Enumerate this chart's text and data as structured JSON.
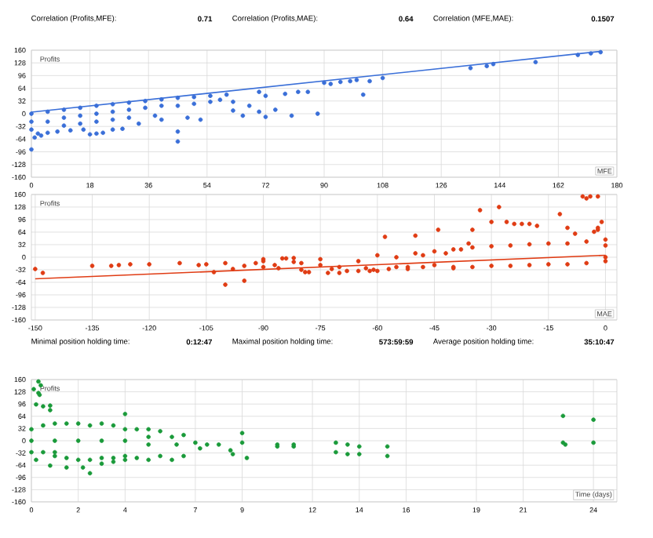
{
  "chart_data": [
    {
      "type": "scatter",
      "xlabel": "MFE",
      "ylabel": "Profits",
      "xlim": [
        0,
        180
      ],
      "ylim": [
        -160,
        160
      ],
      "xticks": [
        0,
        18,
        36,
        54,
        72,
        90,
        108,
        126,
        144,
        162,
        180
      ],
      "yticks": [
        -160,
        -128,
        -96,
        -64,
        -32,
        0,
        32,
        64,
        96,
        128,
        160
      ],
      "grid": true,
      "annotations": [
        "Correlation (Profits,MFE):",
        "0.71",
        "Correlation (Profits,MAE):",
        "0.64",
        "Correlation (MFE,MAE):",
        "0.1507"
      ],
      "series": [
        {
          "color": "#3a6fd8",
          "x": [
            0,
            1,
            2,
            3,
            5,
            8,
            12,
            16,
            18,
            20,
            22,
            25,
            28,
            33,
            40,
            45,
            45,
            48,
            52,
            0,
            0,
            0,
            5,
            5,
            10,
            10,
            10,
            15,
            15,
            15,
            20,
            20,
            20,
            25,
            25,
            25,
            30,
            30,
            30,
            35,
            35,
            38,
            40,
            40,
            45,
            45,
            50,
            50,
            55,
            55,
            58,
            60,
            62,
            62,
            65,
            67,
            70,
            70,
            72,
            72,
            75,
            78,
            80,
            82,
            85,
            88,
            90,
            92,
            95,
            98,
            100,
            102,
            104,
            108,
            135,
            140,
            142,
            155,
            168,
            172,
            175
          ],
          "values": [
            -90,
            -60,
            -50,
            -55,
            -48,
            -45,
            -42,
            -40,
            -52,
            -50,
            -48,
            -40,
            -38,
            -25,
            -15,
            -70,
            -45,
            -10,
            -15,
            0,
            -20,
            -40,
            5,
            -20,
            10,
            -10,
            -30,
            15,
            -5,
            -25,
            20,
            0,
            -20,
            24,
            5,
            -15,
            28,
            10,
            -10,
            32,
            15,
            -5,
            36,
            20,
            40,
            20,
            42,
            25,
            45,
            30,
            35,
            48,
            30,
            8,
            -5,
            20,
            55,
            5,
            45,
            -8,
            10,
            50,
            -5,
            55,
            55,
            0,
            78,
            75,
            80,
            82,
            85,
            48,
            82,
            90,
            115,
            120,
            125,
            130,
            148,
            152,
            155
          ]
        },
        {
          "type": "line",
          "color": "#3a6fd8",
          "x": [
            0,
            175
          ],
          "values": [
            4,
            157
          ]
        }
      ]
    },
    {
      "type": "scatter",
      "xlabel": "MAE",
      "ylabel": "Profits",
      "xlim": [
        -151,
        3
      ],
      "ylim": [
        -160,
        160
      ],
      "xticks": [
        -150,
        -135,
        -120,
        -105,
        -90,
        -75,
        -60,
        -45,
        -30,
        -15,
        0
      ],
      "yticks": [
        -160,
        -128,
        -96,
        -64,
        -32,
        0,
        32,
        64,
        96,
        128,
        160
      ],
      "grid": true,
      "series": [
        {
          "color": "#e03c14",
          "x": [
            -150,
            -148,
            -135,
            -130,
            -128,
            -125,
            -120,
            -112,
            -107,
            -105,
            -100,
            -90,
            -85,
            -84,
            -82,
            -103,
            -100,
            -98,
            -95,
            -90,
            -87,
            -86,
            -82,
            -80,
            -79,
            -78,
            -75,
            -73,
            -72,
            -70,
            -68,
            -65,
            -63,
            -61,
            -60,
            -58,
            -55,
            -52,
            -50,
            -48,
            -45,
            -44,
            -42,
            -40,
            -38,
            -36,
            -35,
            -33,
            -30,
            -28,
            -26,
            -24,
            -22,
            -20,
            -18,
            -12,
            -10,
            -8,
            -6,
            -5,
            -4,
            -2,
            -2,
            -1,
            -3,
            -2,
            0,
            0,
            0,
            0,
            -5,
            -5,
            -10,
            -10,
            -15,
            -15,
            -20,
            -20,
            -25,
            -25,
            -30,
            -30,
            -35,
            -35,
            -40,
            -40,
            -45,
            -50,
            -55,
            -48,
            -60,
            -65,
            -70,
            -75,
            -80,
            -90,
            -92,
            -95,
            -62,
            -57,
            -52
          ],
          "values": [
            -30,
            -40,
            -22,
            -22,
            -20,
            -18,
            -18,
            -15,
            -20,
            -18,
            -15,
            -10,
            -3,
            -3,
            -2,
            -38,
            -70,
            -30,
            -60,
            -5,
            -20,
            -28,
            -12,
            -32,
            -38,
            -38,
            -20,
            -40,
            -30,
            -40,
            -35,
            -10,
            -28,
            -32,
            5,
            52,
            -25,
            -25,
            55,
            -25,
            -20,
            70,
            10,
            -25,
            20,
            35,
            70,
            120,
            90,
            128,
            90,
            85,
            85,
            85,
            80,
            110,
            75,
            60,
            155,
            150,
            155,
            155,
            75,
            90,
            65,
            70,
            45,
            30,
            0,
            -10,
            40,
            -15,
            35,
            -18,
            35,
            -18,
            33,
            -20,
            30,
            -22,
            28,
            -22,
            25,
            -25,
            20,
            -28,
            15,
            10,
            0,
            5,
            -35,
            -35,
            -25,
            -5,
            -15,
            -25,
            -15,
            -22,
            -35,
            -30,
            -30
          ]
        },
        {
          "type": "line",
          "color": "#e03c14",
          "x": [
            -150,
            0
          ],
          "values": [
            -55,
            5
          ]
        }
      ]
    },
    {
      "type": "scatter",
      "xlabel": "Time (days)",
      "ylabel": "Profits",
      "xlim": [
        0,
        25
      ],
      "ylim": [
        -160,
        160
      ],
      "xticks": [
        0,
        2,
        4,
        7,
        9,
        12,
        14,
        16,
        19,
        21,
        24
      ],
      "yticks": [
        -160,
        -128,
        -96,
        -64,
        -32,
        0,
        32,
        64,
        96,
        128,
        160
      ],
      "grid": true,
      "annotations": [
        "Minimal position holding time:",
        "0:12:47",
        "Maximal position holding time:",
        "573:59:59",
        "Average position holding time:",
        "35:10:47"
      ],
      "series": [
        {
          "color": "#1a9a3a",
          "x": [
            0.3,
            0.4,
            0.3,
            0.35,
            0.1,
            0.2,
            0.5,
            0.8,
            0.8,
            0.2,
            0.8,
            1.0,
            1.5,
            2.2,
            2.5,
            3.0,
            3.5,
            4.0,
            4.5,
            5.0,
            5.5,
            6.0,
            6.5,
            6.2,
            5.0,
            4.0,
            4.5,
            5.0,
            5.5,
            6.0,
            6.5,
            7.0,
            7.2,
            7.5,
            8.0,
            8.5,
            8.6,
            9.0,
            9.2,
            9.0,
            10.5,
            10.5,
            11.2,
            11.2,
            13.0,
            13.0,
            13.5,
            13.5,
            14.0,
            14.0,
            15.2,
            15.2,
            22.7,
            22.7,
            22.8,
            24.0,
            24.0,
            0,
            0,
            0,
            0.5,
            0.5,
            1,
            1,
            1.5,
            1.5,
            2,
            2,
            2.5,
            2.5,
            3,
            3,
            3.5,
            3.5,
            4,
            4,
            1,
            2,
            3,
            4,
            5
          ],
          "values": [
            155,
            145,
            125,
            120,
            135,
            95,
            90,
            92,
            80,
            -50,
            -65,
            -30,
            -70,
            -70,
            -85,
            -60,
            -55,
            -50,
            -45,
            -50,
            -40,
            -50,
            -40,
            -10,
            10,
            70,
            30,
            30,
            25,
            10,
            15,
            -5,
            -20,
            -10,
            -10,
            -25,
            -35,
            20,
            -45,
            -5,
            -10,
            -15,
            -15,
            -10,
            -5,
            -30,
            -10,
            -35,
            -15,
            -35,
            -15,
            -40,
            65,
            -5,
            -10,
            55,
            -5,
            0,
            30,
            -30,
            40,
            -30,
            45,
            -40,
            45,
            -45,
            45,
            -50,
            40,
            -50,
            45,
            -45,
            40,
            -45,
            30,
            -40,
            0,
            0,
            0,
            0,
            -10
          ]
        }
      ]
    }
  ]
}
